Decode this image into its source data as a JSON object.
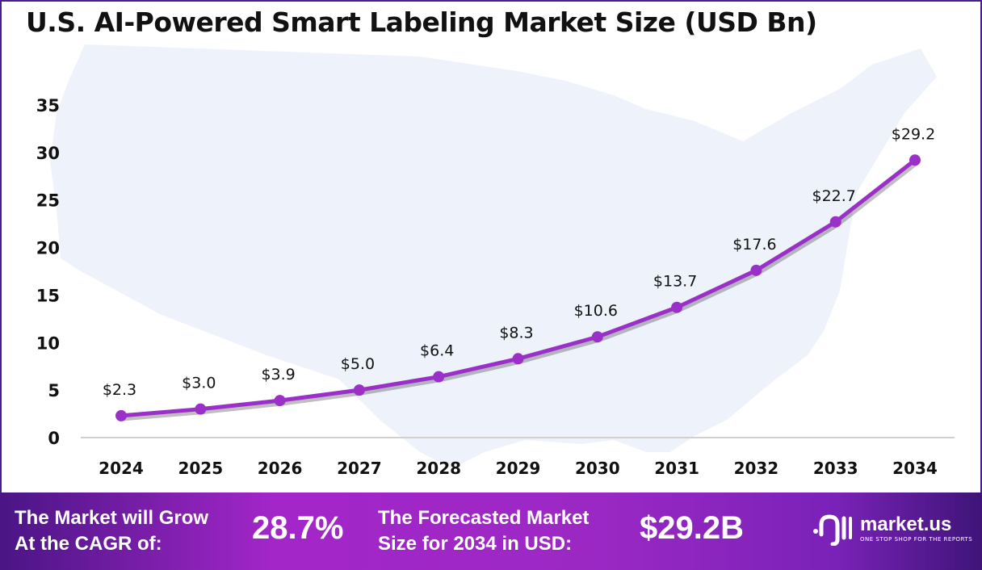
{
  "title": "U.S. AI-Powered Smart Labeling Market Size (USD Bn)",
  "chart_data": {
    "type": "line",
    "title": "U.S. AI-Powered Smart Labeling Market Size (USD Bn)",
    "categories": [
      "2024",
      "2025",
      "2026",
      "2027",
      "2028",
      "2029",
      "2030",
      "2031",
      "2032",
      "2033",
      "2034"
    ],
    "values": [
      2.3,
      3.0,
      3.9,
      5.0,
      6.4,
      8.3,
      10.6,
      13.7,
      17.6,
      22.7,
      29.2
    ],
    "data_labels": [
      "$2.3",
      "$3.0",
      "$3.9",
      "$5.0",
      "$6.4",
      "$8.3",
      "$10.6",
      "$13.7",
      "$17.6",
      "$22.7",
      "$29.2"
    ],
    "yticks": [
      0,
      5,
      10,
      15,
      20,
      25,
      30,
      35
    ],
    "ylim": [
      0,
      35
    ],
    "xlabel": "",
    "ylabel": "",
    "grid": false,
    "line_color": "#9b30c8",
    "background_image": "us-map-silhouette"
  },
  "footer": {
    "cagr_label_line1": "The Market will Grow",
    "cagr_label_line2": "At the CAGR of:",
    "cagr_value": "28.7%",
    "forecast_label_line1": "The Forecasted Market",
    "forecast_label_line2": "Size for 2034 in USD:",
    "forecast_value": "$29.2B",
    "logo_name": "market.us",
    "logo_tagline": "ONE STOP SHOP FOR THE REPORTS"
  }
}
